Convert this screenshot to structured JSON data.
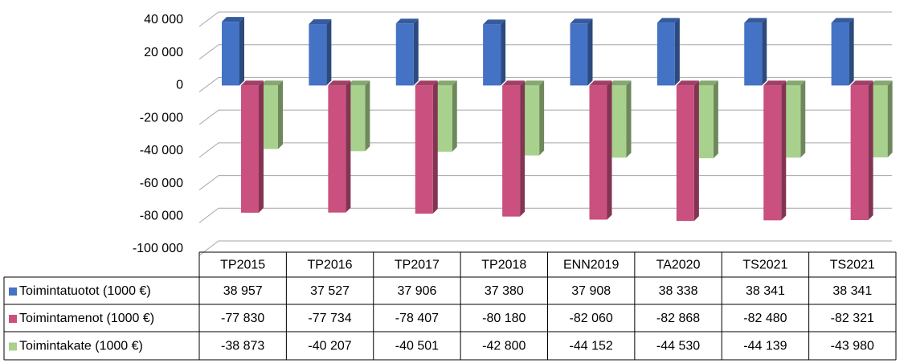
{
  "chart_data": {
    "type": "bar3d",
    "categories": [
      "TP2015",
      "TP2016",
      "TP2017",
      "TP2018",
      "ENN2019",
      "TA2020",
      "TS2021",
      "TS2021"
    ],
    "series": [
      {
        "name": "Toimintatuotot (1000 €)",
        "color": "#4472c4",
        "values": [
          38957,
          37527,
          37906,
          37380,
          37908,
          38338,
          38341,
          38341
        ],
        "value_labels": [
          "38 957",
          "37 527",
          "37 906",
          "37 380",
          "37 908",
          "38 338",
          "38 341",
          "38 341"
        ]
      },
      {
        "name": "Toimintamenot (1000 €)",
        "color": "#c9507f",
        "values": [
          -77830,
          -77734,
          -78407,
          -80180,
          -82060,
          -82868,
          -82480,
          -82321
        ],
        "value_labels": [
          "-77 830",
          "-77 734",
          "-78 407",
          "-80 180",
          "-82 060",
          "-82 868",
          "-82 480",
          "-82 321"
        ]
      },
      {
        "name": "Toimintakate (1000 €)",
        "color": "#a9d18e",
        "values": [
          -38873,
          -40207,
          -40501,
          -42800,
          -44152,
          -44530,
          -44139,
          -43980
        ],
        "value_labels": [
          "-38 873",
          "-40 207",
          "-40 501",
          "-42 800",
          "-44 152",
          "-44 530",
          "-44 139",
          "-43 980"
        ]
      }
    ],
    "ylim": [
      -100000,
      40000
    ],
    "yticks": [
      {
        "value": -100000,
        "label": "-100 000"
      },
      {
        "value": -80000,
        "label": "-80 000"
      },
      {
        "value": -60000,
        "label": "-60 000"
      },
      {
        "value": -40000,
        "label": "-40 000"
      },
      {
        "value": -20000,
        "label": "-20 000"
      },
      0,
      {
        "value": 20000,
        "label": "20 000"
      },
      {
        "value": 40000,
        "label": "40 000"
      }
    ],
    "grid": true
  }
}
